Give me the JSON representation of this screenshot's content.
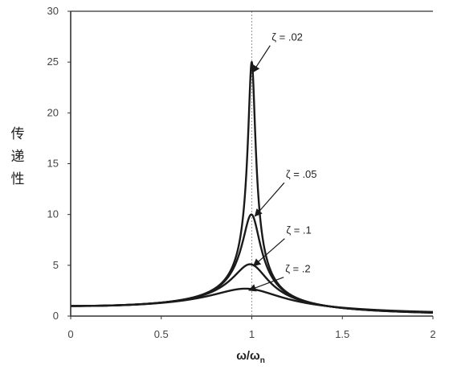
{
  "chart_data": {
    "type": "line",
    "xlabel": "ω/ω",
    "xlabel_sub": "n",
    "ylabel_chars": [
      "传",
      "递",
      "性"
    ],
    "xlim": [
      0,
      2
    ],
    "ylim": [
      0,
      30
    ],
    "xticks": [
      "0",
      "0.5",
      "1",
      "1.5",
      "2"
    ],
    "yticks": [
      "0",
      "5",
      "10",
      "15",
      "20",
      "25",
      "30"
    ],
    "reference_line_x": 1,
    "grid": false,
    "legend": "none",
    "series": [
      {
        "name": "ζ = .02",
        "zeta": 0.02,
        "peak": 25.0
      },
      {
        "name": "ζ = .05",
        "zeta": 0.05,
        "peak": 10.0
      },
      {
        "name": "ζ = .1",
        "zeta": 0.1,
        "peak": 5.1
      },
      {
        "name": "ζ = .2",
        "zeta": 0.2,
        "peak": 2.7
      }
    ],
    "colors": {
      "line": "#1a1a1a",
      "axis": "#333333",
      "refline": "#999999"
    }
  }
}
